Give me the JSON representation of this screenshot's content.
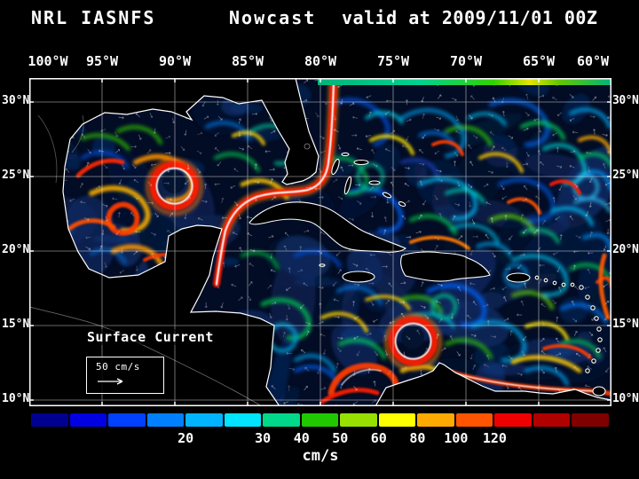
{
  "title": {
    "left": "NRL IASNFS",
    "center": "Nowcast",
    "right": "valid at 2009/11/01 00Z"
  },
  "map": {
    "lon_labels": [
      "100°W",
      "95°W",
      "90°W",
      "85°W",
      "80°W",
      "75°W",
      "70°W",
      "65°W",
      "60°W"
    ],
    "lat_labels": [
      "30°N",
      "25°N",
      "20°N",
      "15°N",
      "10°N"
    ],
    "annotation": "Surface Current",
    "scale_label": "50 cm/s"
  },
  "chart_data": {
    "type": "heatmap",
    "title": "NRL IASNFS Nowcast valid at 2009/11/01 00Z",
    "variable": "Surface Current",
    "units": "cm/s",
    "x_axis": {
      "ticks": [
        "100°W",
        "95°W",
        "90°W",
        "85°W",
        "80°W",
        "75°W",
        "70°W",
        "65°W",
        "60°W"
      ],
      "range_deg_west": [
        100,
        60
      ]
    },
    "y_axis": {
      "ticks": [
        "30°N",
        "25°N",
        "20°N",
        "15°N",
        "10°N"
      ],
      "range_deg_north": [
        10,
        30
      ]
    },
    "grid": true,
    "reference_vector_label": "50 cm/s",
    "colorbar": {
      "units": "cm/s",
      "orientation": "horizontal",
      "tick_labels": [
        "20",
        "30",
        "40",
        "50",
        "60",
        "80",
        "100",
        "120"
      ],
      "tick_positions": [
        0.2667,
        0.4,
        0.4667,
        0.5333,
        0.6,
        0.6667,
        0.7333,
        0.8
      ],
      "colors": [
        "#000090",
        "#0000e0",
        "#0040ff",
        "#0080ff",
        "#00b4ff",
        "#00e4ff",
        "#00d88a",
        "#20c800",
        "#98e000",
        "#ffff00",
        "#ffaa00",
        "#ff5500",
        "#ee0000",
        "#b00000",
        "#800000"
      ],
      "ocean_background": "#020c24",
      "accent_text": "#ffffff"
    }
  }
}
